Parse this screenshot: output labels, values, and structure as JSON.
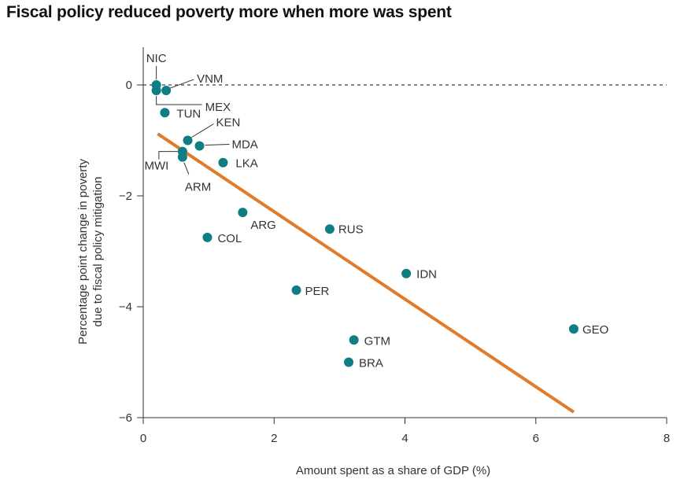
{
  "chart_data": {
    "type": "scatter",
    "title": "Fiscal policy reduced poverty more when more was spent",
    "xlabel": "Amount spent as a share of GDP (%)",
    "ylabel_lines": [
      "Percentage point change in poverty",
      "due to fiscal policy mitigation"
    ],
    "xlim": [
      0,
      8
    ],
    "ylim": [
      -6,
      0.4
    ],
    "xticks": [
      0,
      2,
      4,
      6,
      8
    ],
    "xtick_labels": [
      "0",
      "2",
      "4",
      "6",
      "8"
    ],
    "yticks": [
      0,
      -2,
      -4,
      -6
    ],
    "ytick_labels": [
      "0",
      "−2",
      "−4",
      "−6"
    ],
    "reference_line_y": 0,
    "points": [
      {
        "label": "NIC",
        "x": 0.2,
        "y": 0.0
      },
      {
        "label": "VNM",
        "x": 0.35,
        "y": -0.1
      },
      {
        "label": "MEX",
        "x": 0.2,
        "y": -0.1
      },
      {
        "label": "TUN",
        "x": 0.33,
        "y": -0.5
      },
      {
        "label": "KEN",
        "x": 0.68,
        "y": -1.0
      },
      {
        "label": "MDA",
        "x": 0.86,
        "y": -1.1
      },
      {
        "label": "MWI",
        "x": 0.6,
        "y": -1.2
      },
      {
        "label": "ARM",
        "x": 0.6,
        "y": -1.3
      },
      {
        "label": "LKA",
        "x": 1.22,
        "y": -1.4
      },
      {
        "label": "ARG",
        "x": 1.52,
        "y": -2.3
      },
      {
        "label": "COL",
        "x": 0.98,
        "y": -2.75
      },
      {
        "label": "RUS",
        "x": 2.85,
        "y": -2.6
      },
      {
        "label": "IDN",
        "x": 4.02,
        "y": -3.4
      },
      {
        "label": "PER",
        "x": 2.34,
        "y": -3.7
      },
      {
        "label": "GTM",
        "x": 3.22,
        "y": -4.6
      },
      {
        "label": "BRA",
        "x": 3.14,
        "y": -5.0
      },
      {
        "label": "GEO",
        "x": 6.58,
        "y": -4.4
      }
    ],
    "trend_line": {
      "x": [
        0.22,
        6.58
      ],
      "y": [
        -0.88,
        -5.9
      ]
    },
    "colors": {
      "points": "#0f7d84",
      "trend": "#e07b2c",
      "axis": "#333333"
    }
  }
}
